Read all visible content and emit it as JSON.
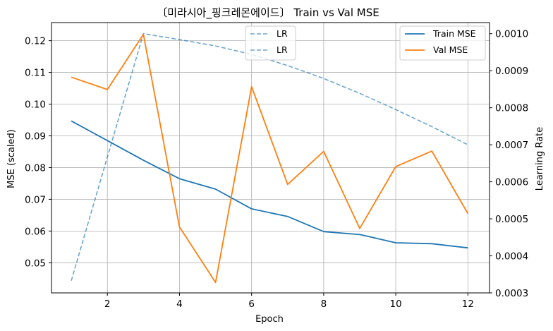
{
  "chart_data": {
    "type": "line",
    "title": "〔미라시아_핑크레몬에이드〕 Train vs Val MSE",
    "xlabel": "Epoch",
    "ylabel": "MSE (scaled)",
    "y2label": "Learning Rate",
    "grid": true,
    "x": [
      1,
      2,
      3,
      4,
      5,
      6,
      7,
      8,
      9,
      10,
      11,
      12
    ],
    "xlim": [
      0.45,
      12.6
    ],
    "ylim": [
      0.0405,
      0.1257
    ],
    "y2lim": [
      0.0003,
      0.00103
    ],
    "x_ticks": [
      2,
      4,
      6,
      8,
      10,
      12
    ],
    "x_tick_labels": [
      "2",
      "4",
      "6",
      "8",
      "10",
      "12"
    ],
    "y_ticks": [
      0.05,
      0.06,
      0.07,
      0.08,
      0.09,
      0.1,
      0.11,
      0.12
    ],
    "y_tick_labels": [
      "0.05",
      "0.06",
      "0.07",
      "0.08",
      "0.09",
      "0.10",
      "0.11",
      "0.12"
    ],
    "y2_ticks": [
      0.0003,
      0.0004,
      0.0005,
      0.0006,
      0.0007,
      0.0008,
      0.0009,
      0.001
    ],
    "y2_tick_labels": [
      "0.0003",
      "0.0004",
      "0.0005",
      "0.0006",
      "0.0007",
      "0.0008",
      "0.0009",
      "0.0010"
    ],
    "series": [
      {
        "name": "Train MSE",
        "axis": "left",
        "color": "#1f77b4",
        "dash": "solid",
        "values": [
          0.0947,
          0.0885,
          0.0823,
          0.0765,
          0.0732,
          0.067,
          0.0646,
          0.0598,
          0.0589,
          0.0563,
          0.056,
          0.0547
        ]
      },
      {
        "name": "Val MSE",
        "axis": "left",
        "color": "#ff7f0e",
        "dash": "solid",
        "values": [
          0.1085,
          0.1046,
          0.122,
          0.0613,
          0.0438,
          0.1055,
          0.0747,
          0.0851,
          0.0608,
          0.0803,
          0.0852,
          0.0655
        ]
      },
      {
        "name": "LR",
        "axis": "right",
        "color": "#1f77b4",
        "alpha": 0.65,
        "dash": "dashed",
        "values": [
          0.000333,
          0.000667,
          0.001,
          0.000984,
          0.000967,
          0.000944,
          0.000914,
          0.000879,
          0.000839,
          0.000795,
          0.000749,
          0.0007
        ]
      }
    ],
    "legend_lr": {
      "placement": "top-center",
      "entries": [
        "LR",
        "LR"
      ]
    },
    "legend_mse": {
      "placement": "top-right",
      "entries": [
        "Train MSE",
        "Val MSE"
      ]
    }
  }
}
